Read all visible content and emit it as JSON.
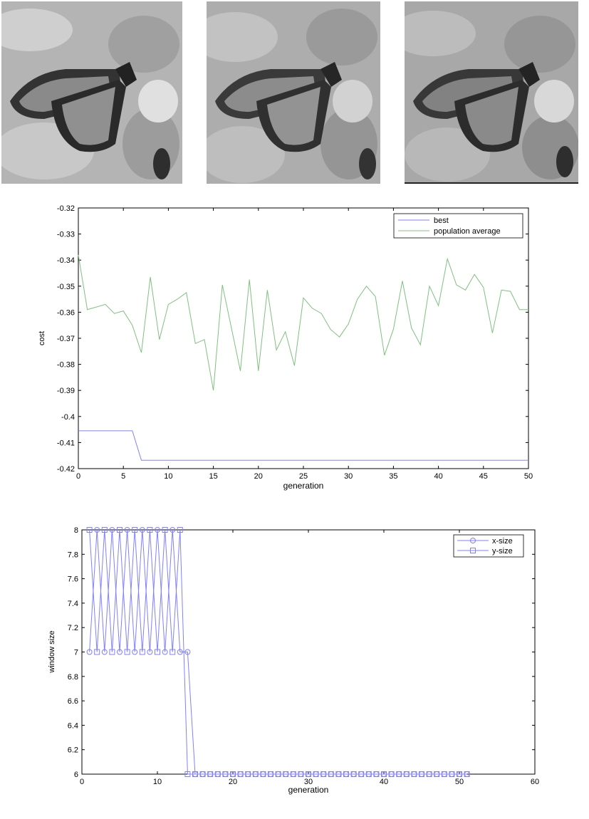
{
  "chart_data": [
    {
      "type": "line",
      "xlabel": "generation",
      "ylabel": "cost",
      "xlim": [
        0,
        50
      ],
      "ylim": [
        -0.42,
        -0.32
      ],
      "xticks": [
        0,
        5,
        10,
        15,
        20,
        25,
        30,
        35,
        40,
        45,
        50
      ],
      "yticks": [
        -0.32,
        -0.33,
        -0.34,
        -0.35,
        -0.36,
        -0.37,
        -0.38,
        -0.39,
        -0.4,
        -0.41,
        -0.42
      ],
      "legend_position": "top-right",
      "grid": false,
      "series": [
        {
          "name": "best",
          "color": "#8080ff",
          "x": [
            0,
            6,
            7,
            50
          ],
          "y": [
            -0.4055,
            -0.4055,
            -0.4168,
            -0.4168
          ]
        },
        {
          "name": "population average",
          "color": "#80c080",
          "x": [
            0,
            1,
            2,
            3,
            4,
            5,
            6,
            7,
            8,
            9,
            10,
            11,
            12,
            13,
            14,
            15,
            16,
            17,
            18,
            19,
            20,
            21,
            22,
            23,
            24,
            25,
            26,
            27,
            28,
            29,
            30,
            31,
            32,
            33,
            34,
            35,
            36,
            37,
            38,
            39,
            40,
            41,
            42,
            43,
            44,
            45,
            46,
            47,
            48,
            49,
            50
          ],
          "y": [
            -0.338,
            -0.359,
            -0.358,
            -0.357,
            -0.3605,
            -0.3595,
            -0.365,
            -0.3755,
            -0.3465,
            -0.3705,
            -0.357,
            -0.355,
            -0.3525,
            -0.372,
            -0.3705,
            -0.39,
            -0.3495,
            -0.366,
            -0.3825,
            -0.3475,
            -0.3825,
            -0.3515,
            -0.3745,
            -0.3675,
            -0.3805,
            -0.3545,
            -0.3585,
            -0.3605,
            -0.3665,
            -0.3695,
            -0.3645,
            -0.355,
            -0.35,
            -0.354,
            -0.3765,
            -0.3665,
            -0.348,
            -0.366,
            -0.3725,
            -0.35,
            -0.3575,
            -0.3395,
            -0.3495,
            -0.3515,
            -0.3455,
            -0.3505,
            -0.368,
            -0.3515,
            -0.352,
            -0.359,
            -0.359
          ]
        }
      ]
    },
    {
      "type": "line",
      "xlabel": "generation",
      "ylabel": "window size",
      "xlim": [
        0,
        60
      ],
      "ylim": [
        6,
        8
      ],
      "xticks": [
        0,
        10,
        20,
        30,
        40,
        50,
        60
      ],
      "yticks": [
        8,
        7.8,
        7.6,
        7.4,
        7.2,
        7,
        6.8,
        6.6,
        6.4,
        6.2,
        6
      ],
      "legend_position": "top-right",
      "grid": false,
      "series": [
        {
          "name": "x-size",
          "marker": "circle",
          "color": "#8080ff",
          "x": [
            1,
            2,
            3,
            4,
            5,
            6,
            7,
            8,
            9,
            10,
            11,
            12,
            13,
            14,
            15,
            16,
            17,
            18,
            19,
            20,
            21,
            22,
            23,
            24,
            25,
            26,
            27,
            28,
            29,
            30,
            31,
            32,
            33,
            34,
            35,
            36,
            37,
            38,
            39,
            40,
            41,
            42,
            43,
            44,
            45,
            46,
            47,
            48,
            49,
            50,
            51
          ],
          "y": [
            7,
            8,
            7,
            8,
            7,
            8,
            7,
            8,
            7,
            8,
            7,
            8,
            7,
            7,
            6,
            6,
            6,
            6,
            6,
            6,
            6,
            6,
            6,
            6,
            6,
            6,
            6,
            6,
            6,
            6,
            6,
            6,
            6,
            6,
            6,
            6,
            6,
            6,
            6,
            6,
            6,
            6,
            6,
            6,
            6,
            6,
            6,
            6,
            6,
            6,
            6
          ]
        },
        {
          "name": "y-size",
          "marker": "square",
          "color": "#8080ff",
          "x": [
            1,
            2,
            3,
            4,
            5,
            6,
            7,
            8,
            9,
            10,
            11,
            12,
            13,
            14,
            15,
            16,
            17,
            18,
            19,
            20,
            21,
            22,
            23,
            24,
            25,
            26,
            27,
            28,
            29,
            30,
            31,
            32,
            33,
            34,
            35,
            36,
            37,
            38,
            39,
            40,
            41,
            42,
            43,
            44,
            45,
            46,
            47,
            48,
            49,
            50,
            51
          ],
          "y": [
            8,
            7,
            8,
            7,
            8,
            7,
            8,
            7,
            8,
            7,
            8,
            7,
            8,
            6,
            6,
            6,
            6,
            6,
            6,
            6,
            6,
            6,
            6,
            6,
            6,
            6,
            6,
            6,
            6,
            6,
            6,
            6,
            6,
            6,
            6,
            6,
            6,
            6,
            6,
            6,
            6,
            6,
            6,
            6,
            6,
            6,
            6,
            6,
            6,
            6,
            6
          ]
        }
      ]
    }
  ]
}
